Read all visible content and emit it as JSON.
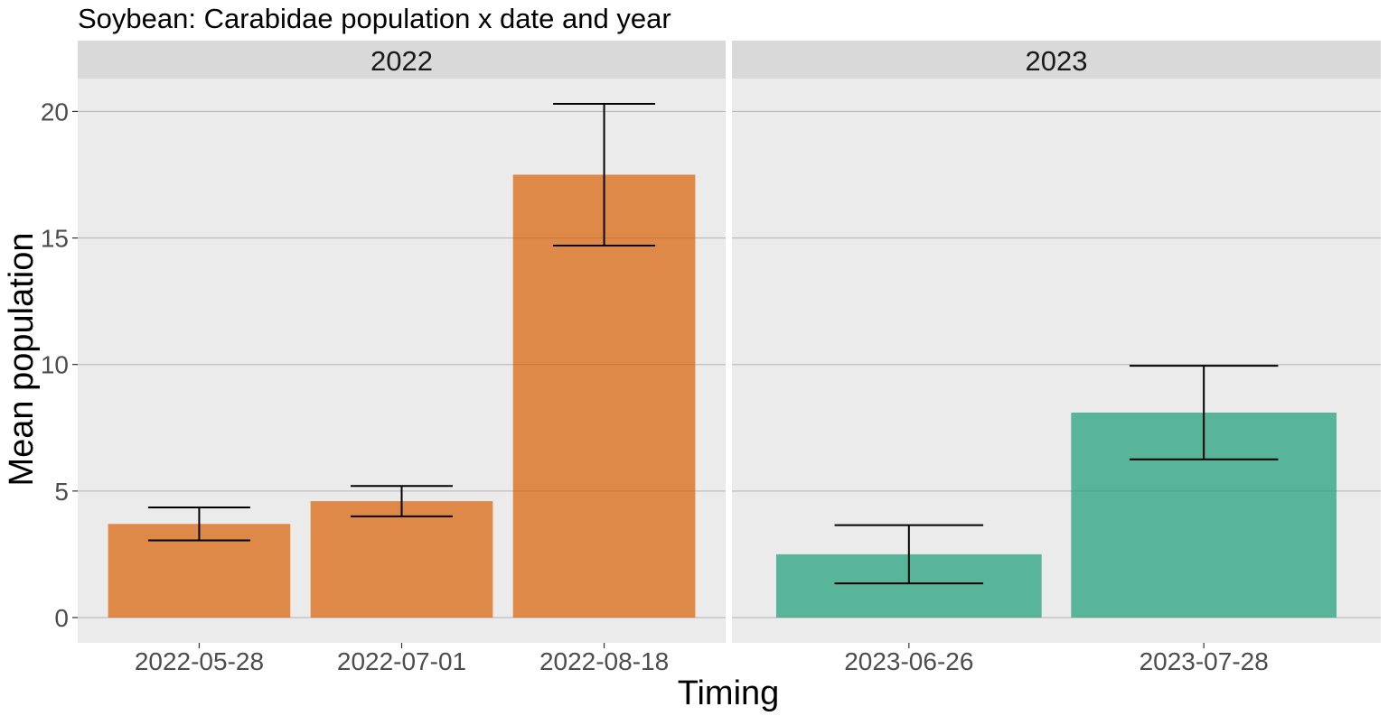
{
  "chart_data": {
    "type": "bar",
    "title": "Soybean: Carabidae population x date and year",
    "xlabel": "Timing",
    "ylabel": "Mean population",
    "ylim": [
      -1,
      21.3
    ],
    "yticks": [
      0,
      5,
      10,
      15,
      20
    ],
    "y_tick_labels": [
      "0",
      "5",
      "10",
      "15",
      "20"
    ],
    "grid": true,
    "legend": "none",
    "panels": [
      {
        "strip": "2022",
        "color": "#d95f02",
        "categories": [
          "2022-05-28",
          "2022-07-01",
          "2022-08-18"
        ],
        "values": [
          3.7,
          4.6,
          17.5
        ],
        "error_low": [
          3.05,
          4.0,
          14.7
        ],
        "error_high": [
          4.35,
          5.2,
          20.3
        ]
      },
      {
        "strip": "2023",
        "color": "#1b9e77",
        "categories": [
          "2023-06-26",
          "2023-07-28"
        ],
        "values": [
          2.5,
          8.1
        ],
        "error_low": [
          1.35,
          6.25
        ],
        "error_high": [
          3.65,
          9.95
        ]
      }
    ]
  }
}
